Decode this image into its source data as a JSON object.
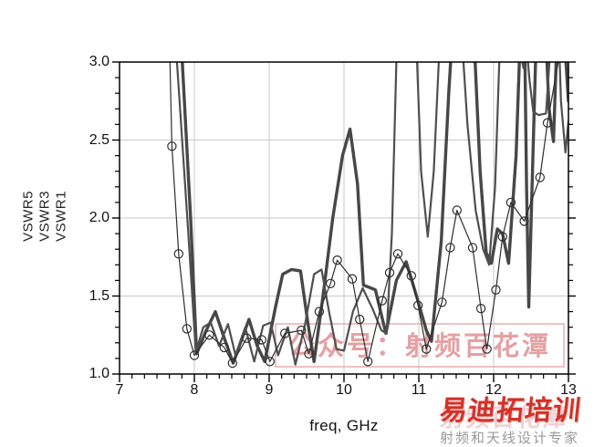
{
  "chart_data": {
    "type": "line",
    "title": "",
    "xlabel": "freq, GHz",
    "ylabel_lines": [
      "VSWR5",
      "VSWR3",
      "VSWR1"
    ],
    "xlim": [
      7,
      13
    ],
    "ylim": [
      1.0,
      3.0
    ],
    "x_ticks": [
      "7",
      "8",
      "9",
      "10",
      "11",
      "12",
      "13"
    ],
    "y_ticks": [
      "1.0",
      "1.5",
      "2.0",
      "2.5",
      "3.0"
    ],
    "grid": true,
    "grid_color": "#c9c9c9",
    "frame_color": "#000000",
    "series": [
      {
        "name": "VSWR5",
        "style": "thick",
        "color": "#474747",
        "width": 3.4,
        "markers": false,
        "points": [
          [
            7.8,
            3.35
          ],
          [
            7.95,
            2.0
          ],
          [
            8.03,
            1.13
          ],
          [
            8.15,
            1.27
          ],
          [
            8.28,
            1.4
          ],
          [
            8.4,
            1.23
          ],
          [
            8.52,
            1.07
          ],
          [
            8.63,
            1.22
          ],
          [
            8.73,
            1.35
          ],
          [
            8.84,
            1.18
          ],
          [
            8.94,
            1.08
          ],
          [
            9.08,
            1.42
          ],
          [
            9.18,
            1.64
          ],
          [
            9.3,
            1.67
          ],
          [
            9.42,
            1.66
          ],
          [
            9.52,
            1.32
          ],
          [
            9.6,
            1.08
          ],
          [
            9.72,
            1.5
          ],
          [
            9.85,
            2.0
          ],
          [
            9.98,
            2.4
          ],
          [
            10.08,
            2.57
          ],
          [
            10.18,
            2.22
          ],
          [
            10.26,
            1.57
          ],
          [
            10.42,
            1.54
          ],
          [
            10.56,
            1.26
          ],
          [
            10.7,
            1.6
          ],
          [
            10.83,
            1.72
          ],
          [
            10.97,
            1.5
          ],
          [
            11.1,
            1.28
          ],
          [
            11.17,
            1.21
          ],
          [
            11.3,
            1.85
          ],
          [
            11.4,
            2.8
          ],
          [
            11.47,
            3.35
          ],
          [
            11.72,
            3.35
          ],
          [
            11.82,
            2.3
          ],
          [
            11.9,
            1.78
          ],
          [
            11.97,
            1.71
          ],
          [
            12.05,
            1.93
          ],
          [
            12.12,
            1.9
          ],
          [
            12.2,
            1.71
          ],
          [
            12.3,
            2.4
          ],
          [
            12.37,
            3.35
          ],
          [
            12.41,
            3.35
          ],
          [
            12.44,
            2.2
          ],
          [
            12.47,
            1.43
          ],
          [
            12.52,
            2.3
          ],
          [
            12.58,
            3.35
          ],
          [
            12.68,
            3.35
          ],
          [
            12.74,
            2.7
          ],
          [
            12.8,
            2.49
          ],
          [
            12.86,
            3.35
          ],
          [
            12.92,
            3.35
          ],
          [
            13.0,
            2.75
          ]
        ]
      },
      {
        "name": "VSWR3",
        "style": "medium",
        "color": "#4f4f4f",
        "width": 2.2,
        "markers": false,
        "points": [
          [
            7.72,
            3.35
          ],
          [
            7.92,
            1.9
          ],
          [
            8.02,
            1.14
          ],
          [
            8.12,
            1.3
          ],
          [
            8.22,
            1.33
          ],
          [
            8.33,
            1.18
          ],
          [
            8.45,
            1.32
          ],
          [
            8.55,
            1.12
          ],
          [
            8.68,
            1.3
          ],
          [
            8.8,
            1.08
          ],
          [
            8.92,
            1.31
          ],
          [
            9.02,
            1.33
          ],
          [
            9.12,
            1.12
          ],
          [
            9.25,
            1.3
          ],
          [
            9.35,
            1.06
          ],
          [
            9.48,
            1.32
          ],
          [
            9.6,
            1.64
          ],
          [
            9.7,
            1.67
          ],
          [
            9.8,
            1.4
          ],
          [
            9.9,
            1.16
          ],
          [
            10.0,
            1.15
          ],
          [
            10.12,
            1.4
          ],
          [
            10.25,
            1.55
          ],
          [
            10.38,
            1.42
          ],
          [
            10.5,
            1.28
          ],
          [
            10.57,
            1.26
          ],
          [
            10.64,
            1.9
          ],
          [
            10.7,
            3.0
          ],
          [
            10.74,
            3.35
          ],
          [
            10.95,
            3.35
          ],
          [
            11.03,
            2.3
          ],
          [
            11.12,
            1.88
          ],
          [
            11.2,
            2.3
          ],
          [
            11.3,
            3.35
          ],
          [
            11.55,
            3.35
          ],
          [
            11.65,
            2.6
          ],
          [
            11.76,
            2.05
          ],
          [
            11.86,
            1.8
          ],
          [
            11.94,
            1.7
          ],
          [
            12.02,
            2.2
          ],
          [
            12.1,
            3.35
          ],
          [
            12.3,
            3.35
          ],
          [
            12.36,
            3.05
          ],
          [
            12.4,
            2.96
          ],
          [
            12.44,
            3.1
          ],
          [
            12.48,
            2.88
          ],
          [
            12.53,
            2.68
          ],
          [
            12.6,
            2.66
          ],
          [
            12.7,
            2.67
          ],
          [
            12.76,
            3.1
          ],
          [
            12.8,
            3.35
          ],
          [
            12.86,
            3.35
          ],
          [
            12.9,
            2.75
          ],
          [
            12.96,
            2.42
          ],
          [
            13.0,
            2.62
          ]
        ]
      },
      {
        "name": "VSWR1",
        "style": "thin-circle-markers",
        "color": "#2e2e2e",
        "width": 1.2,
        "markers": true,
        "marker_radius": 4.6,
        "points": [
          [
            7.66,
            3.3
          ],
          [
            7.7,
            2.46
          ],
          [
            7.79,
            1.77
          ],
          [
            7.9,
            1.29
          ],
          [
            8.0,
            1.12
          ],
          [
            8.2,
            1.25
          ],
          [
            8.4,
            1.17
          ],
          [
            8.51,
            1.07
          ],
          [
            8.7,
            1.23
          ],
          [
            8.9,
            1.22
          ],
          [
            9.01,
            1.08
          ],
          [
            9.21,
            1.26
          ],
          [
            9.43,
            1.28
          ],
          [
            9.53,
            1.13
          ],
          [
            9.67,
            1.4
          ],
          [
            9.82,
            1.58
          ],
          [
            9.91,
            1.73
          ],
          [
            10.11,
            1.61
          ],
          [
            10.21,
            1.35
          ],
          [
            10.32,
            1.08
          ],
          [
            10.51,
            1.47
          ],
          [
            10.61,
            1.65
          ],
          [
            10.72,
            1.77
          ],
          [
            10.9,
            1.63
          ],
          [
            10.99,
            1.44
          ],
          [
            11.1,
            1.16
          ],
          [
            11.31,
            1.46
          ],
          [
            11.42,
            1.81
          ],
          [
            11.51,
            2.05
          ],
          [
            11.72,
            1.81
          ],
          [
            11.83,
            1.42
          ],
          [
            11.91,
            1.16
          ],
          [
            12.03,
            1.54
          ],
          [
            12.12,
            1.88
          ],
          [
            12.23,
            2.1
          ],
          [
            12.41,
            1.98
          ],
          [
            12.62,
            2.26
          ],
          [
            12.72,
            2.61
          ],
          [
            12.9,
            3.1
          ]
        ]
      }
    ]
  },
  "watermark": {
    "text": "公众号：射频百花潭",
    "color": "#e5a0a3"
  },
  "logo": {
    "brand": "易迪拓培训",
    "brand_color": "#d33128",
    "tagline": "射频和天线设计专家",
    "tagline_color": "#9a9a9a",
    "echo": "射频百花潭"
  }
}
